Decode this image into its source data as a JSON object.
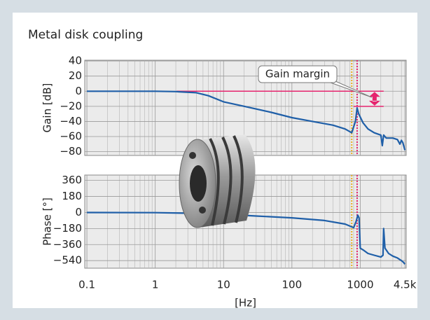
{
  "chart_data": [
    {
      "type": "line",
      "title": "Metal disk coupling",
      "ylabel": "Gain [dB]",
      "log_x": true,
      "grid": true,
      "color": "#1f5fa8",
      "xlim": [
        0.093,
        4700
      ],
      "minor_xticks": [
        0.2,
        0.3,
        0.4,
        0.5,
        0.6,
        0.7,
        0.8,
        0.9,
        2,
        3,
        4,
        5,
        6,
        7,
        8,
        9,
        20,
        30,
        40,
        50,
        60,
        70,
        80,
        90,
        200,
        300,
        400,
        500,
        600,
        700,
        800,
        900,
        2000,
        3000,
        4000
      ],
      "xticks": [
        0.1,
        1,
        10,
        100,
        1000,
        {
          "value": 4500,
          "label": "4.5k"
        }
      ],
      "ylim": [
        -85,
        41
      ],
      "yticks": [
        40,
        20,
        0,
        {
          "value": -20,
          "label": "−20"
        },
        {
          "value": -40,
          "label": "−40"
        },
        {
          "value": -60,
          "label": "−60"
        },
        {
          "value": -80,
          "label": "−80"
        }
      ],
      "x": [
        0.1,
        1,
        2,
        4,
        6,
        10,
        20,
        50,
        100,
        200,
        400,
        600,
        750,
        850,
        900,
        950,
        1100,
        1300,
        1600,
        2000,
        2100,
        2200,
        2400,
        3000,
        3500,
        3800,
        4000,
        4200,
        4500
      ],
      "values": [
        0,
        0,
        -0.5,
        -2,
        -6,
        -14,
        -20,
        -28,
        -35,
        -40,
        -45,
        -50,
        -55,
        -40,
        -22,
        -30,
        -42,
        -50,
        -55,
        -58,
        -72,
        -58,
        -62,
        -62,
        -64,
        -70,
        -65,
        -68,
        -78
      ],
      "hlines": [
        {
          "y": 0,
          "x": [
            2.06,
            2200
          ],
          "color": "#e6246e"
        },
        {
          "y": -20,
          "x": [
            800,
            2200
          ],
          "color": "#e6246e"
        }
      ],
      "markers": [
        {
          "x": 750,
          "color": "#e8b020"
        },
        {
          "x": 900,
          "color": "#e6246e"
        }
      ],
      "annotation": {
        "text": "Gain margin",
        "x": 1620,
        "from": -20,
        "to": 0,
        "color": "#e6246e"
      }
    },
    {
      "type": "line",
      "ylabel": "Phase [°]",
      "xlabel": "[Hz]",
      "log_x": true,
      "grid": true,
      "color": "#1f5fa8",
      "xlim": [
        0.093,
        4700
      ],
      "minor_xticks": [
        0.2,
        0.3,
        0.4,
        0.5,
        0.6,
        0.7,
        0.8,
        0.9,
        2,
        3,
        4,
        5,
        6,
        7,
        8,
        9,
        20,
        30,
        40,
        50,
        60,
        70,
        80,
        90,
        200,
        300,
        400,
        500,
        600,
        700,
        800,
        900,
        2000,
        3000,
        4000
      ],
      "xticks": [
        0.1,
        1,
        10,
        100,
        1000,
        {
          "value": 4500,
          "label": "4.5k"
        }
      ],
      "ylim": [
        -625,
        420
      ],
      "yticks": [
        360,
        180,
        0,
        {
          "value": -180,
          "label": "−180"
        },
        {
          "value": -360,
          "label": "−360"
        },
        {
          "value": -540,
          "label": "−540"
        }
      ],
      "x": [
        0.1,
        1,
        3,
        10,
        30,
        100,
        300,
        600,
        800,
        870,
        920,
        960,
        1000,
        1100,
        1300,
        1600,
        2000,
        2150,
        2200,
        2300,
        2600,
        3000,
        3500,
        4000,
        4300,
        4500
      ],
      "values": [
        0,
        -2,
        -8,
        -20,
        -40,
        -60,
        -90,
        -130,
        -170,
        -100,
        -30,
        -60,
        -400,
        -420,
        -460,
        -480,
        -500,
        -480,
        -180,
        -400,
        -460,
        -490,
        -510,
        -540,
        -560,
        -580
      ],
      "markers": [
        {
          "x": 750,
          "color": "#e8b020"
        },
        {
          "x": 900,
          "color": "#e6246e"
        }
      ]
    }
  ]
}
